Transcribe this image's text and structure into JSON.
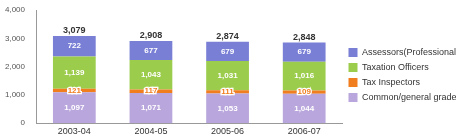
{
  "chart_data": {
    "type": "bar",
    "stacked": true,
    "categories": [
      "2003-04",
      "2004-05",
      "2005-06",
      "2006-07"
    ],
    "series": [
      {
        "name": "Common/general grade officers",
        "color": "#b9a6dc",
        "values": [
          1097,
          1071,
          1053,
          1044
        ],
        "value_labels": [
          "1,097",
          "1,071",
          "1,053",
          "1,044"
        ]
      },
      {
        "name": "Tax Inspectors",
        "color": "#f07d1e",
        "values": [
          121,
          117,
          111,
          109
        ]
      },
      {
        "name": "Taxation Officers",
        "color": "#9ccc4c",
        "values": [
          1139,
          1043,
          1031,
          1016
        ],
        "value_labels": [
          "1,139",
          "1,043",
          "1,031",
          "1,016"
        ]
      },
      {
        "name": "Assessors(Professional)",
        "color": "#7a7fd6",
        "values": [
          722,
          677,
          679,
          679
        ]
      }
    ],
    "totals": [
      3079,
      2908,
      2874,
      2848
    ],
    "total_labels": [
      "3,079",
      "2,908",
      "2,874",
      "2,848"
    ],
    "ylim": [
      0,
      4000
    ],
    "yticks": [
      0,
      {
        "value": 1000,
        "label": "1,000"
      },
      {
        "value": 2000,
        "label": "2,000"
      },
      {
        "value": 3000,
        "label": "3,000"
      },
      {
        "value": 4000,
        "label": "4,000"
      }
    ],
    "grid": false,
    "legend": "right",
    "data_labels": true
  }
}
